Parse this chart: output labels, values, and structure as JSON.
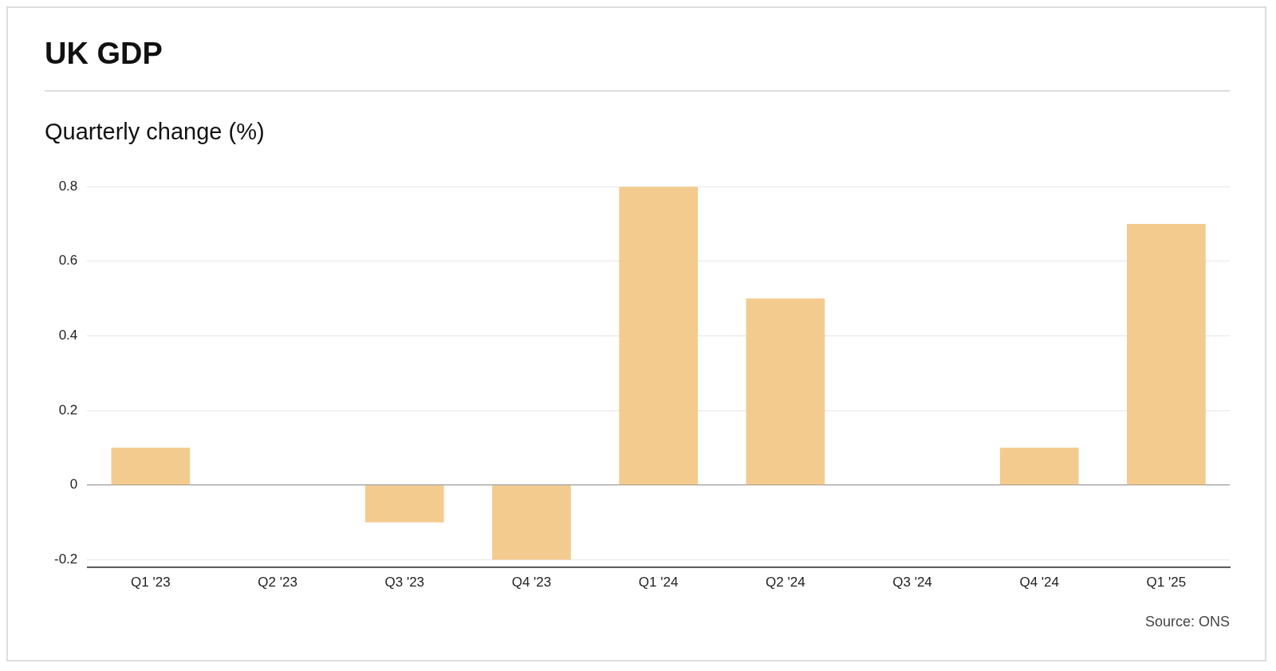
{
  "chart_data": {
    "type": "bar",
    "title": "UK GDP",
    "ylabel": "Quarterly change (%)",
    "categories": [
      "Q1 '23",
      "Q2 '23",
      "Q3 '23",
      "Q4 '23",
      "Q1 '24",
      "Q2 '24",
      "Q3 '24",
      "Q4 '24",
      "Q1 '25"
    ],
    "values": [
      0.1,
      0,
      -0.1,
      -0.2,
      0.8,
      0.5,
      0,
      0.1,
      0.7
    ],
    "color": "#f4cb8f",
    "ylim": [
      -0.22,
      0.8
    ],
    "yticks": [
      -0.2,
      0,
      0.2,
      0.4,
      0.6,
      0.8
    ],
    "grid": "y",
    "annotations": [
      "Source: ONS"
    ]
  }
}
